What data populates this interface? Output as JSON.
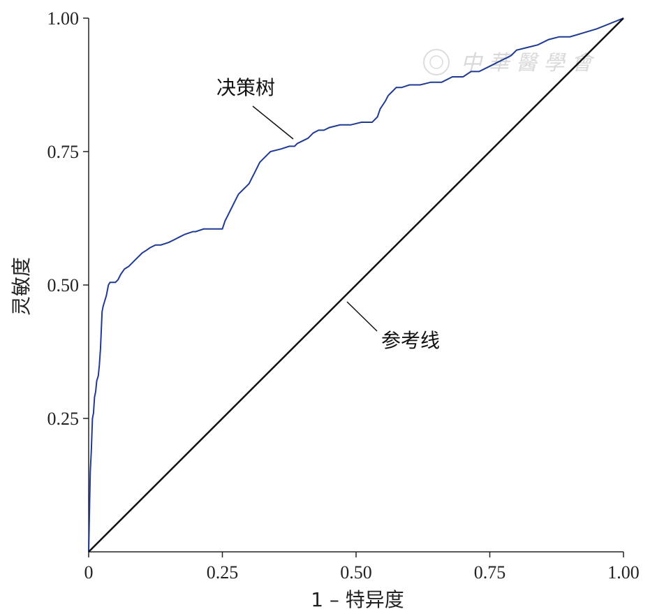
{
  "chart_data": {
    "type": "line",
    "xlabel": "1 – 特异度",
    "ylabel": "灵敏度",
    "xlim": [
      0,
      1
    ],
    "ylim": [
      0,
      1
    ],
    "x_ticks": [
      "0",
      "0.25",
      "0.50",
      "0.75",
      "1.00"
    ],
    "x_tick_values": [
      0,
      0.25,
      0.5,
      0.75,
      1.0
    ],
    "y_ticks": [
      "0.25",
      "0.50",
      "0.75",
      "1.00"
    ],
    "y_tick_values": [
      0.25,
      0.5,
      0.75,
      1.0
    ],
    "grid": false,
    "series": [
      {
        "name": "决策树",
        "color": "#1f3a93",
        "x": [
          0,
          0.002,
          0.003,
          0.005,
          0.006,
          0.007,
          0.009,
          0.011,
          0.013,
          0.015,
          0.018,
          0.02,
          0.022,
          0.025,
          0.027,
          0.03,
          0.033,
          0.035,
          0.037,
          0.04,
          0.043,
          0.047,
          0.05,
          0.055,
          0.06,
          0.067,
          0.075,
          0.08,
          0.085,
          0.09,
          0.095,
          0.1,
          0.108,
          0.115,
          0.125,
          0.135,
          0.15,
          0.16,
          0.17,
          0.18,
          0.195,
          0.2,
          0.215,
          0.225,
          0.235,
          0.25,
          0.255,
          0.26,
          0.265,
          0.27,
          0.275,
          0.28,
          0.29,
          0.295,
          0.3,
          0.305,
          0.31,
          0.315,
          0.32,
          0.33,
          0.335,
          0.34,
          0.36,
          0.375,
          0.385,
          0.39,
          0.4,
          0.41,
          0.42,
          0.43,
          0.44,
          0.45,
          0.47,
          0.49,
          0.51,
          0.53,
          0.535,
          0.54,
          0.545,
          0.555,
          0.56,
          0.565,
          0.575,
          0.585,
          0.6,
          0.62,
          0.64,
          0.66,
          0.68,
          0.7,
          0.715,
          0.73,
          0.75,
          0.77,
          0.79,
          0.8,
          0.82,
          0.84,
          0.86,
          0.88,
          0.9,
          0.95,
          1.0
        ],
        "y": [
          0,
          0.1,
          0.15,
          0.19,
          0.22,
          0.25,
          0.26,
          0.29,
          0.3,
          0.32,
          0.33,
          0.35,
          0.38,
          0.45,
          0.46,
          0.47,
          0.48,
          0.49,
          0.5,
          0.505,
          0.505,
          0.505,
          0.505,
          0.51,
          0.52,
          0.53,
          0.535,
          0.54,
          0.545,
          0.55,
          0.555,
          0.56,
          0.565,
          0.57,
          0.575,
          0.575,
          0.58,
          0.585,
          0.59,
          0.595,
          0.6,
          0.6,
          0.605,
          0.605,
          0.605,
          0.605,
          0.62,
          0.63,
          0.64,
          0.65,
          0.66,
          0.67,
          0.68,
          0.685,
          0.69,
          0.7,
          0.71,
          0.72,
          0.73,
          0.74,
          0.745,
          0.75,
          0.755,
          0.76,
          0.76,
          0.765,
          0.77,
          0.775,
          0.785,
          0.79,
          0.79,
          0.795,
          0.8,
          0.8,
          0.805,
          0.805,
          0.81,
          0.815,
          0.83,
          0.845,
          0.855,
          0.86,
          0.87,
          0.87,
          0.875,
          0.875,
          0.88,
          0.88,
          0.89,
          0.89,
          0.9,
          0.9,
          0.91,
          0.92,
          0.93,
          0.94,
          0.945,
          0.95,
          0.96,
          0.965,
          0.965,
          0.98,
          1.0
        ]
      },
      {
        "name": "参考线",
        "color": "#111111",
        "x": [
          0,
          1
        ],
        "y": [
          0,
          1
        ]
      }
    ],
    "annotations": [
      {
        "text": "决策树",
        "target_series": "决策树"
      },
      {
        "text": "参考线",
        "target_series": "参考线"
      }
    ]
  },
  "watermark": {
    "text": "中 華 醫 學 會"
  }
}
